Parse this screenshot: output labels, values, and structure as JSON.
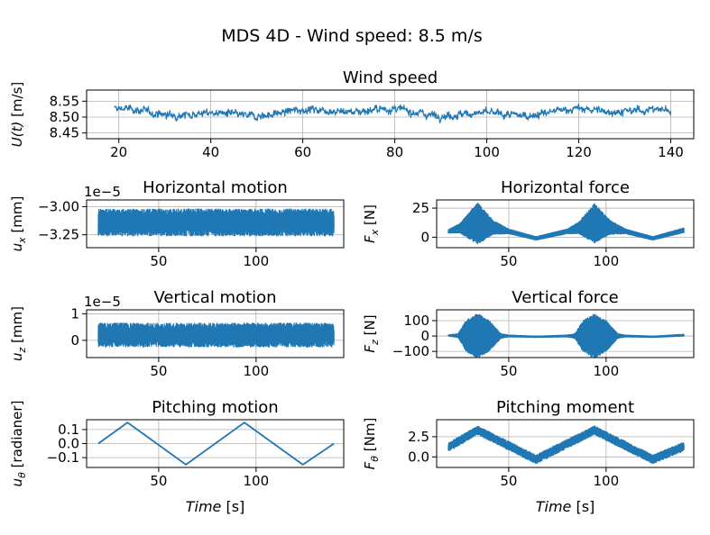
{
  "figure": {
    "title": "MDS 4D - Wind speed: 8.5 m/s"
  },
  "chart_data": [
    {
      "id": "wind",
      "type": "line",
      "title": "Wind speed",
      "ylabel": "U(t) [m/s]",
      "xlabel": "",
      "xlim": [
        13,
        145
      ],
      "ylim": [
        8.432,
        8.585
      ],
      "xticks": [
        20,
        40,
        60,
        80,
        100,
        120,
        140
      ],
      "yticks": [
        8.45,
        8.5,
        8.55
      ],
      "ytick_labels": [
        "8.45",
        "8.50",
        "8.55"
      ],
      "grid": true,
      "color": "#1f77b4",
      "signal": {
        "x_start": 19,
        "x_end": 140,
        "mean": 8.515,
        "std": 0.022,
        "min": 8.44,
        "max": 8.58
      }
    },
    {
      "id": "hmotion",
      "type": "line",
      "title": "Horizontal motion",
      "ylabel": "u_x [mm]",
      "xlabel": "",
      "offset_text": "1e−5",
      "xlim": [
        13,
        145
      ],
      "ylim": [
        -3.365,
        -2.94
      ],
      "xticks": [
        50,
        100
      ],
      "yticks": [
        -3.0,
        -3.25
      ],
      "ytick_labels": [
        "−3.00",
        "−3.25"
      ],
      "grid": true,
      "color": "#1f77b4",
      "signal": {
        "x_start": 19,
        "x_end": 140,
        "center": -3.14,
        "half_band": 0.12
      }
    },
    {
      "id": "hforce",
      "type": "line",
      "title": "Horizontal force",
      "ylabel": "F_x [N]",
      "xlabel": "",
      "xlim": [
        13,
        145
      ],
      "ylim": [
        -9,
        32
      ],
      "xticks": [
        50,
        100
      ],
      "yticks": [
        0,
        25
      ],
      "ytick_labels": [
        "0",
        "25"
      ],
      "grid": true,
      "color": "#1f77b4",
      "signal": {
        "x_start": 19,
        "x_end": 140,
        "center_points": [
          [
            19,
            5
          ],
          [
            34,
            12
          ],
          [
            50,
            5
          ],
          [
            64,
            -1
          ],
          [
            80,
            5
          ],
          [
            94,
            12
          ],
          [
            110,
            5
          ],
          [
            124,
            -1
          ],
          [
            140,
            6
          ]
        ],
        "amplitude_points": [
          [
            19,
            1.5
          ],
          [
            25,
            4
          ],
          [
            34,
            18
          ],
          [
            42,
            6
          ],
          [
            50,
            2
          ],
          [
            64,
            1.5
          ],
          [
            80,
            2
          ],
          [
            86,
            5
          ],
          [
            94,
            17
          ],
          [
            102,
            6
          ],
          [
            110,
            2
          ],
          [
            124,
            1.5
          ],
          [
            140,
            2
          ]
        ]
      }
    },
    {
      "id": "vmotion",
      "type": "line",
      "title": "Vertical motion",
      "ylabel": "u_z [mm]",
      "xlabel": "",
      "offset_text": "1e−5",
      "xlim": [
        13,
        145
      ],
      "ylim": [
        -0.65,
        1.15
      ],
      "xticks": [
        50,
        100
      ],
      "yticks": [
        0,
        1
      ],
      "ytick_labels": [
        "0",
        "1"
      ],
      "grid": true,
      "color": "#1f77b4",
      "signal": {
        "x_start": 19,
        "x_end": 140,
        "center": 0.2,
        "half_band": 0.45
      }
    },
    {
      "id": "vforce",
      "type": "line",
      "title": "Vertical force",
      "ylabel": "F_z [N]",
      "xlabel": "",
      "xlim": [
        13,
        145
      ],
      "ylim": [
        -140,
        170
      ],
      "xticks": [
        50,
        100
      ],
      "yticks": [
        -100,
        0,
        100
      ],
      "ytick_labels": [
        "−100",
        "0",
        "100"
      ],
      "grid": true,
      "color": "#1f77b4",
      "signal": {
        "x_start": 19,
        "x_end": 140,
        "center_points": [
          [
            19,
            3
          ],
          [
            50,
            0
          ],
          [
            64,
            -5
          ],
          [
            80,
            0
          ],
          [
            110,
            0
          ],
          [
            124,
            -5
          ],
          [
            140,
            5
          ]
        ],
        "amplitude_points": [
          [
            19,
            4
          ],
          [
            24,
            12
          ],
          [
            28,
            100
          ],
          [
            34,
            145
          ],
          [
            40,
            100
          ],
          [
            46,
            15
          ],
          [
            50,
            6
          ],
          [
            64,
            4
          ],
          [
            80,
            6
          ],
          [
            84,
            15
          ],
          [
            88,
            100
          ],
          [
            94,
            145
          ],
          [
            100,
            100
          ],
          [
            106,
            15
          ],
          [
            110,
            6
          ],
          [
            124,
            4
          ],
          [
            140,
            6
          ]
        ]
      }
    },
    {
      "id": "pmotion",
      "type": "line",
      "title": "Pitching motion",
      "ylabel": "u_θ [radianer]",
      "xlabel": "Time [s]",
      "xlim": [
        13,
        145
      ],
      "ylim": [
        -0.17,
        0.17
      ],
      "xticks": [
        50,
        100
      ],
      "yticks": [
        0.1,
        0.0,
        -0.1
      ],
      "ytick_labels": [
        "0.1",
        "0.0",
        "−0.1"
      ],
      "grid": true,
      "color": "#1f77b4",
      "x": [
        19,
        34,
        64,
        94,
        124,
        140
      ],
      "y": [
        0.0,
        0.15,
        -0.15,
        0.15,
        -0.15,
        0.0
      ]
    },
    {
      "id": "pmoment",
      "type": "line",
      "title": "Pitching moment",
      "ylabel": "F_θ [Nm]",
      "xlabel": "Time [s]",
      "xlim": [
        13,
        145
      ],
      "ylim": [
        -1.3,
        4.6
      ],
      "xticks": [
        50,
        100
      ],
      "yticks": [
        0.0,
        2.5
      ],
      "ytick_labels": [
        "0.0",
        "2.5"
      ],
      "grid": true,
      "color": "#1f77b4",
      "signal": {
        "x_start": 19,
        "x_end": 140,
        "center_points": [
          [
            19,
            1.2
          ],
          [
            34,
            3.3
          ],
          [
            64,
            -0.3
          ],
          [
            94,
            3.3
          ],
          [
            124,
            -0.3
          ],
          [
            140,
            1.3
          ]
        ],
        "half_band": 0.55
      }
    }
  ]
}
